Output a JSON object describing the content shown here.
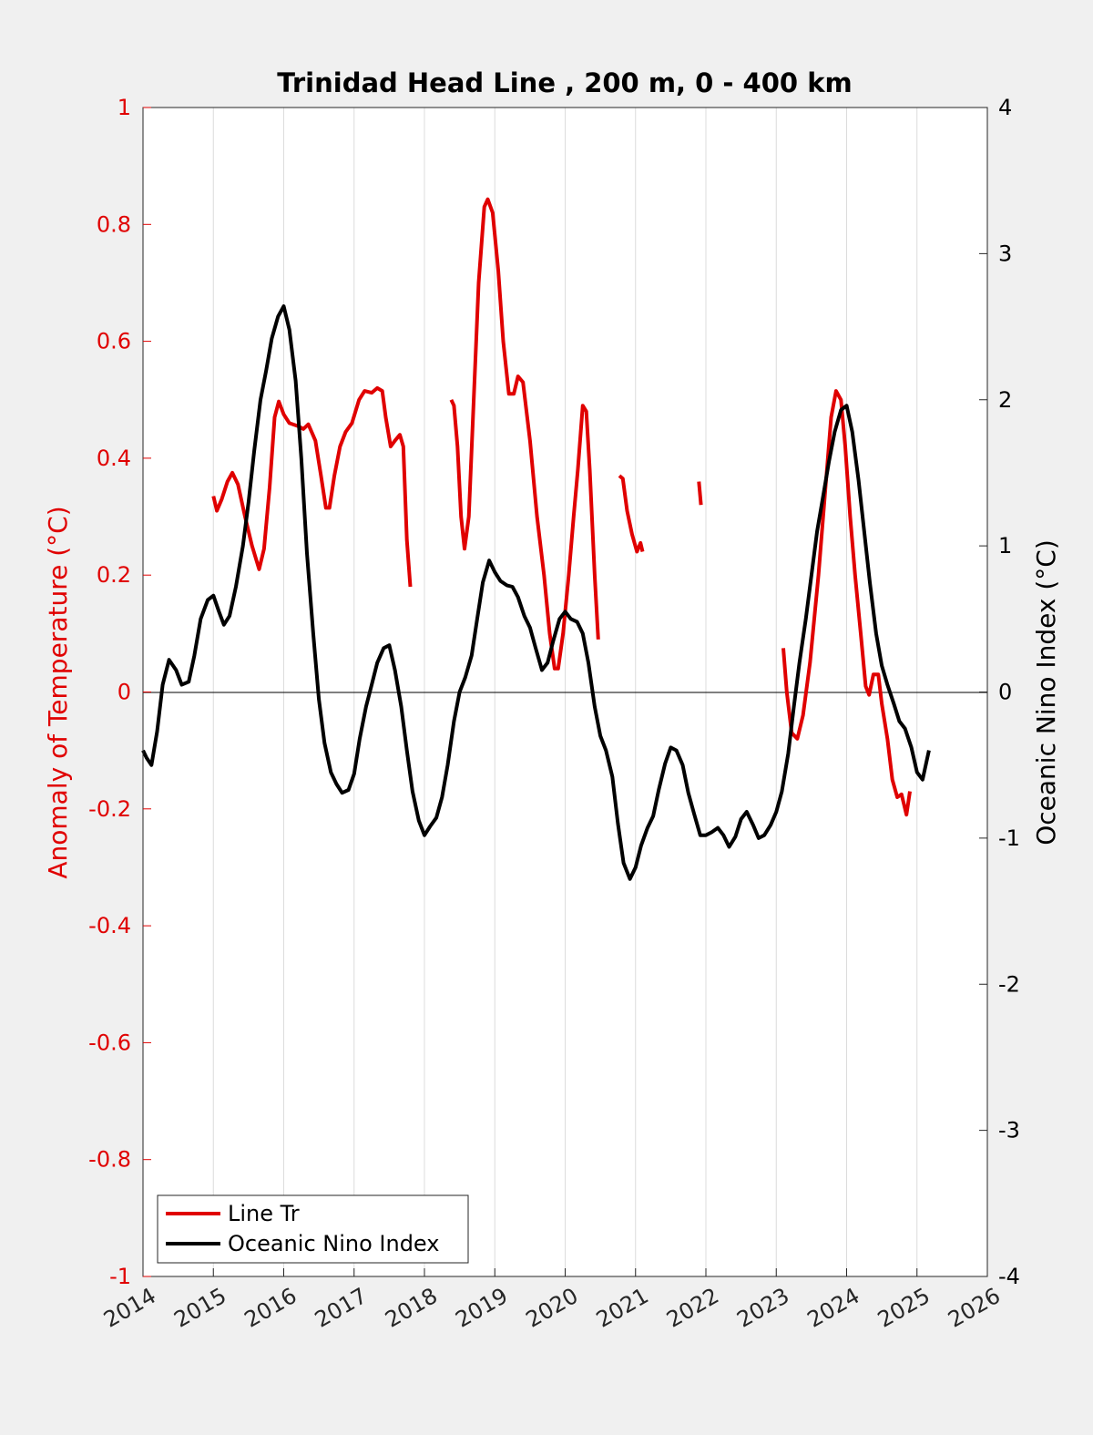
{
  "chart_data": {
    "type": "line",
    "title": "Trinidad Head Line , 200 m, 0 - 400 km",
    "ylabel_left": "Anomaly of Temperature (°C)",
    "ylabel_right": "Oceanic Nino Index (°C)",
    "xlim": [
      2014,
      2026
    ],
    "ylim_left": [
      -1,
      1
    ],
    "ylim_right": [
      -4,
      4
    ],
    "xticks": [
      "2014",
      "2015",
      "2016",
      "2017",
      "2018",
      "2019",
      "2020",
      "2021",
      "2022",
      "2023",
      "2024",
      "2025",
      "2026"
    ],
    "yticks_left": [
      "1",
      "0.8",
      "0.6",
      "0.4",
      "0.2",
      "0",
      "-0.2",
      "-0.4",
      "-0.6",
      "-0.8",
      "-1"
    ],
    "yticks_right": [
      "4",
      "3",
      "2",
      "1",
      "0",
      "-1",
      "-2",
      "-3",
      "-4"
    ],
    "grid": "vertical",
    "legend_position": "bottom-left",
    "colors": {
      "line_tr": "#e00000",
      "oni": "#000000",
      "axis_left": "#e00000"
    },
    "series": [
      {
        "name": "Line Tr",
        "axis": "left",
        "segments": [
          [
            [
              2015.0,
              0.335
            ],
            [
              2015.05,
              0.31
            ],
            [
              2015.12,
              0.33
            ],
            [
              2015.2,
              0.36
            ],
            [
              2015.27,
              0.375
            ],
            [
              2015.35,
              0.355
            ],
            [
              2015.45,
              0.3
            ],
            [
              2015.55,
              0.25
            ],
            [
              2015.65,
              0.21
            ],
            [
              2015.72,
              0.245
            ],
            [
              2015.8,
              0.35
            ],
            [
              2015.87,
              0.47
            ],
            [
              2015.93,
              0.497
            ],
            [
              2016.0,
              0.475
            ],
            [
              2016.08,
              0.46
            ],
            [
              2016.2,
              0.455
            ],
            [
              2016.28,
              0.45
            ],
            [
              2016.35,
              0.458
            ],
            [
              2016.45,
              0.43
            ],
            [
              2016.53,
              0.37
            ],
            [
              2016.6,
              0.315
            ],
            [
              2016.65,
              0.315
            ],
            [
              2016.72,
              0.37
            ],
            [
              2016.8,
              0.42
            ],
            [
              2016.88,
              0.445
            ],
            [
              2016.97,
              0.46
            ],
            [
              2017.07,
              0.5
            ],
            [
              2017.15,
              0.515
            ],
            [
              2017.25,
              0.512
            ],
            [
              2017.33,
              0.52
            ],
            [
              2017.4,
              0.515
            ],
            [
              2017.45,
              0.47
            ],
            [
              2017.52,
              0.42
            ],
            [
              2017.58,
              0.43
            ],
            [
              2017.65,
              0.44
            ],
            [
              2017.7,
              0.42
            ],
            [
              2017.75,
              0.26
            ],
            [
              2017.8,
              0.18
            ]
          ],
          [
            [
              2018.38,
              0.5
            ],
            [
              2018.42,
              0.49
            ],
            [
              2018.47,
              0.42
            ],
            [
              2018.52,
              0.3
            ],
            [
              2018.57,
              0.245
            ],
            [
              2018.63,
              0.3
            ],
            [
              2018.7,
              0.5
            ],
            [
              2018.77,
              0.7
            ],
            [
              2018.85,
              0.83
            ],
            [
              2018.9,
              0.843
            ],
            [
              2018.97,
              0.82
            ],
            [
              2019.05,
              0.72
            ],
            [
              2019.12,
              0.6
            ],
            [
              2019.2,
              0.51
            ],
            [
              2019.27,
              0.51
            ],
            [
              2019.33,
              0.54
            ],
            [
              2019.4,
              0.53
            ],
            [
              2019.5,
              0.43
            ],
            [
              2019.6,
              0.3
            ],
            [
              2019.7,
              0.2
            ],
            [
              2019.78,
              0.1
            ],
            [
              2019.85,
              0.04
            ],
            [
              2019.9,
              0.04
            ],
            [
              2019.97,
              0.1
            ],
            [
              2020.05,
              0.2
            ],
            [
              2020.12,
              0.3
            ],
            [
              2020.18,
              0.38
            ],
            [
              2020.25,
              0.49
            ],
            [
              2020.3,
              0.48
            ],
            [
              2020.35,
              0.38
            ],
            [
              2020.42,
              0.2
            ],
            [
              2020.47,
              0.09
            ]
          ],
          [
            [
              2020.77,
              0.37
            ],
            [
              2020.82,
              0.365
            ],
            [
              2020.88,
              0.31
            ],
            [
              2020.95,
              0.27
            ],
            [
              2021.02,
              0.24
            ],
            [
              2021.07,
              0.255
            ],
            [
              2021.1,
              0.24
            ]
          ],
          [
            [
              2021.9,
              0.36
            ],
            [
              2021.93,
              0.32
            ]
          ],
          [
            [
              2023.1,
              0.075
            ],
            [
              2023.15,
              0.0
            ],
            [
              2023.22,
              -0.07
            ],
            [
              2023.3,
              -0.08
            ],
            [
              2023.38,
              -0.04
            ],
            [
              2023.48,
              0.05
            ],
            [
              2023.6,
              0.2
            ],
            [
              2023.7,
              0.35
            ],
            [
              2023.78,
              0.47
            ],
            [
              2023.85,
              0.515
            ],
            [
              2023.92,
              0.5
            ],
            [
              2023.98,
              0.42
            ],
            [
              2024.05,
              0.3
            ],
            [
              2024.12,
              0.2
            ],
            [
              2024.2,
              0.1
            ],
            [
              2024.27,
              0.01
            ],
            [
              2024.32,
              -0.005
            ],
            [
              2024.38,
              0.03
            ],
            [
              2024.45,
              0.03
            ],
            [
              2024.5,
              -0.02
            ],
            [
              2024.58,
              -0.08
            ],
            [
              2024.65,
              -0.15
            ],
            [
              2024.72,
              -0.18
            ],
            [
              2024.78,
              -0.175
            ],
            [
              2024.85,
              -0.21
            ],
            [
              2024.9,
              -0.17
            ]
          ]
        ]
      },
      {
        "name": "Oceanic Nino Index",
        "axis": "right",
        "points": [
          [
            2014.0,
            -0.4
          ],
          [
            2014.05,
            -0.45
          ],
          [
            2014.12,
            -0.5
          ],
          [
            2014.2,
            -0.27
          ],
          [
            2014.28,
            0.05
          ],
          [
            2014.37,
            0.22
          ],
          [
            2014.47,
            0.15
          ],
          [
            2014.55,
            0.05
          ],
          [
            2014.65,
            0.07
          ],
          [
            2014.73,
            0.25
          ],
          [
            2014.82,
            0.5
          ],
          [
            2014.92,
            0.63
          ],
          [
            2015.0,
            0.66
          ],
          [
            2015.08,
            0.55
          ],
          [
            2015.15,
            0.46
          ],
          [
            2015.23,
            0.52
          ],
          [
            2015.32,
            0.72
          ],
          [
            2015.42,
            1.0
          ],
          [
            2015.5,
            1.3
          ],
          [
            2015.58,
            1.65
          ],
          [
            2015.67,
            2.0
          ],
          [
            2015.75,
            2.2
          ],
          [
            2015.83,
            2.42
          ],
          [
            2015.92,
            2.57
          ],
          [
            2016.0,
            2.64
          ],
          [
            2016.08,
            2.48
          ],
          [
            2016.17,
            2.13
          ],
          [
            2016.25,
            1.6
          ],
          [
            2016.33,
            0.95
          ],
          [
            2016.42,
            0.4
          ],
          [
            2016.5,
            -0.05
          ],
          [
            2016.58,
            -0.35
          ],
          [
            2016.67,
            -0.55
          ],
          [
            2016.75,
            -0.63
          ],
          [
            2016.83,
            -0.69
          ],
          [
            2016.92,
            -0.67
          ],
          [
            2017.0,
            -0.56
          ],
          [
            2017.08,
            -0.32
          ],
          [
            2017.17,
            -0.1
          ],
          [
            2017.25,
            0.05
          ],
          [
            2017.33,
            0.2
          ],
          [
            2017.42,
            0.3
          ],
          [
            2017.5,
            0.32
          ],
          [
            2017.58,
            0.15
          ],
          [
            2017.67,
            -0.1
          ],
          [
            2017.75,
            -0.4
          ],
          [
            2017.83,
            -0.68
          ],
          [
            2017.92,
            -0.88
          ],
          [
            2018.0,
            -0.98
          ],
          [
            2018.08,
            -0.92
          ],
          [
            2018.17,
            -0.86
          ],
          [
            2018.25,
            -0.72
          ],
          [
            2018.33,
            -0.5
          ],
          [
            2018.42,
            -0.2
          ],
          [
            2018.5,
            0.0
          ],
          [
            2018.58,
            0.1
          ],
          [
            2018.67,
            0.25
          ],
          [
            2018.75,
            0.5
          ],
          [
            2018.83,
            0.75
          ],
          [
            2018.92,
            0.9
          ],
          [
            2019.0,
            0.82
          ],
          [
            2019.08,
            0.76
          ],
          [
            2019.17,
            0.73
          ],
          [
            2019.25,
            0.72
          ],
          [
            2019.33,
            0.65
          ],
          [
            2019.42,
            0.52
          ],
          [
            2019.5,
            0.44
          ],
          [
            2019.58,
            0.3
          ],
          [
            2019.67,
            0.15
          ],
          [
            2019.75,
            0.2
          ],
          [
            2019.83,
            0.35
          ],
          [
            2019.92,
            0.5
          ],
          [
            2020.0,
            0.55
          ],
          [
            2020.08,
            0.5
          ],
          [
            2020.17,
            0.48
          ],
          [
            2020.25,
            0.4
          ],
          [
            2020.33,
            0.2
          ],
          [
            2020.42,
            -0.1
          ],
          [
            2020.5,
            -0.3
          ],
          [
            2020.58,
            -0.4
          ],
          [
            2020.67,
            -0.58
          ],
          [
            2020.75,
            -0.9
          ],
          [
            2020.83,
            -1.17
          ],
          [
            2020.92,
            -1.28
          ],
          [
            2021.0,
            -1.2
          ],
          [
            2021.08,
            -1.05
          ],
          [
            2021.17,
            -0.93
          ],
          [
            2021.25,
            -0.85
          ],
          [
            2021.33,
            -0.67
          ],
          [
            2021.42,
            -0.49
          ],
          [
            2021.5,
            -0.38
          ],
          [
            2021.58,
            -0.4
          ],
          [
            2021.67,
            -0.5
          ],
          [
            2021.75,
            -0.69
          ],
          [
            2021.83,
            -0.83
          ],
          [
            2021.92,
            -0.98
          ],
          [
            2022.0,
            -0.98
          ],
          [
            2022.08,
            -0.96
          ],
          [
            2022.17,
            -0.93
          ],
          [
            2022.25,
            -0.98
          ],
          [
            2022.33,
            -1.06
          ],
          [
            2022.42,
            -0.99
          ],
          [
            2022.5,
            -0.87
          ],
          [
            2022.58,
            -0.82
          ],
          [
            2022.67,
            -0.91
          ],
          [
            2022.75,
            -1.0
          ],
          [
            2022.83,
            -0.98
          ],
          [
            2022.92,
            -0.91
          ],
          [
            2023.0,
            -0.82
          ],
          [
            2023.08,
            -0.68
          ],
          [
            2023.17,
            -0.42
          ],
          [
            2023.25,
            -0.1
          ],
          [
            2023.33,
            0.2
          ],
          [
            2023.42,
            0.5
          ],
          [
            2023.5,
            0.8
          ],
          [
            2023.58,
            1.1
          ],
          [
            2023.67,
            1.35
          ],
          [
            2023.75,
            1.58
          ],
          [
            2023.83,
            1.78
          ],
          [
            2023.92,
            1.93
          ],
          [
            2024.0,
            1.96
          ],
          [
            2024.08,
            1.78
          ],
          [
            2024.17,
            1.45
          ],
          [
            2024.25,
            1.1
          ],
          [
            2024.33,
            0.75
          ],
          [
            2024.42,
            0.4
          ],
          [
            2024.5,
            0.18
          ],
          [
            2024.58,
            0.05
          ],
          [
            2024.67,
            -0.08
          ],
          [
            2024.75,
            -0.2
          ],
          [
            2024.83,
            -0.25
          ],
          [
            2024.92,
            -0.38
          ],
          [
            2025.0,
            -0.55
          ],
          [
            2025.08,
            -0.6
          ],
          [
            2025.17,
            -0.4
          ]
        ]
      }
    ]
  },
  "legend": {
    "items": [
      {
        "label": "Line Tr",
        "color": "#e00000"
      },
      {
        "label": "Oceanic Nino Index",
        "color": "#000000"
      }
    ]
  }
}
